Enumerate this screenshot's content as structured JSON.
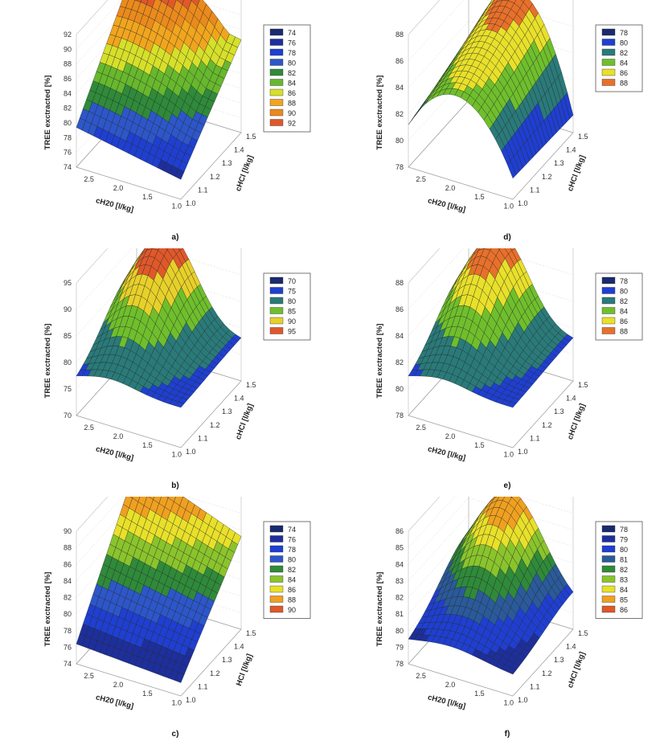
{
  "chart_data": [
    {
      "label": "a)",
      "type": "surface3d",
      "shape": "ridge",
      "zlabel": "TREE exctracted [%]",
      "xlabel": "cH20 [l/kg]",
      "ylabel": "cHCl [l/kg]",
      "zticks": [
        74,
        76,
        78,
        80,
        82,
        84,
        86,
        88,
        90,
        92
      ],
      "zlim": [
        74,
        92
      ],
      "xticks": [
        "2.5",
        "2.0",
        "1.5",
        "1.0"
      ],
      "yticks": [
        "1.0",
        "1.1",
        "1.2",
        "1.3",
        "1.4",
        "1.5"
      ],
      "legend": [
        "74",
        "76",
        "78",
        "80",
        "82",
        "84",
        "86",
        "88",
        "90",
        "92"
      ],
      "legend_colors": [
        "#1a2a6e",
        "#1d2f9c",
        "#1f3fd1",
        "#2d56c9",
        "#2f8a3a",
        "#67b82d",
        "#d6e02a",
        "#f1a51e",
        "#ea8a1c",
        "#e0582a"
      ]
    },
    {
      "label": "d)",
      "type": "surface3d",
      "shape": "dome",
      "zlabel": "TREE exctracted [%]",
      "xlabel": "cH20 [l/kg]",
      "ylabel": "cHCl [l/kg]",
      "zticks": [
        78,
        80,
        82,
        84,
        86,
        88
      ],
      "zlim": [
        78,
        88
      ],
      "xticks": [
        "2.5",
        "2.0",
        "1.5",
        "1.0"
      ],
      "yticks": [
        "1.0",
        "1.1",
        "1.2",
        "1.3",
        "1.4",
        "1.5"
      ],
      "legend": [
        "78",
        "80",
        "82",
        "84",
        "86",
        "88"
      ],
      "legend_colors": [
        "#1a2a6e",
        "#1f3fd1",
        "#2a7a7a",
        "#6fbf2c",
        "#e8e02a",
        "#e8702a"
      ]
    },
    {
      "label": "b)",
      "type": "surface3d",
      "shape": "peak",
      "zlabel": "TREE exctracted [%]",
      "xlabel": "cH20 [l/kg]",
      "ylabel": "cHCl [l/kg]",
      "zticks": [
        70,
        75,
        80,
        85,
        90,
        95
      ],
      "zlim": [
        70,
        95
      ],
      "xticks": [
        "2.5",
        "2.0",
        "1.5",
        "1.0"
      ],
      "yticks": [
        "1.0",
        "1.1",
        "1.2",
        "1.3",
        "1.4",
        "1.5"
      ],
      "legend": [
        "70",
        "75",
        "80",
        "85",
        "90",
        "95"
      ],
      "legend_colors": [
        "#1a2a6e",
        "#1f3fd1",
        "#2a7a7a",
        "#6fbf2c",
        "#e8d02a",
        "#e0582a"
      ]
    },
    {
      "label": "e)",
      "type": "surface3d",
      "shape": "peak",
      "zlabel": "TREE exctracted [%]",
      "xlabel": "cH20 [l/kg]",
      "ylabel": "cHCl [l/kg]",
      "zticks": [
        78,
        80,
        82,
        84,
        86,
        88
      ],
      "zlim": [
        78,
        88
      ],
      "xticks": [
        "2.5",
        "2.0",
        "1.5",
        "1.0"
      ],
      "yticks": [
        "1.0",
        "1.1",
        "1.2",
        "1.3",
        "1.4",
        "1.5"
      ],
      "legend": [
        "78",
        "80",
        "82",
        "84",
        "86",
        "88"
      ],
      "legend_colors": [
        "#1a2a6e",
        "#1f3fd1",
        "#2a7a7a",
        "#6fbf2c",
        "#e8e02a",
        "#e8702a"
      ]
    },
    {
      "label": "c)",
      "type": "surface3d",
      "shape": "slope",
      "zlabel": "TREE exctracted [%]",
      "xlabel": "cH20 [l/kg]",
      "ylabel": "HCl [l/kg]",
      "zticks": [
        74,
        76,
        78,
        80,
        82,
        84,
        86,
        88,
        90
      ],
      "zlim": [
        74,
        90
      ],
      "xticks": [
        "2.5",
        "2.0",
        "1.5",
        "1.0"
      ],
      "yticks": [
        "1.0",
        "1.1",
        "1.2",
        "1.3",
        "1.4",
        "1.5"
      ],
      "legend": [
        "74",
        "76",
        "78",
        "80",
        "82",
        "84",
        "86",
        "88",
        "90"
      ],
      "legend_colors": [
        "#1a2a6e",
        "#1d2f9c",
        "#1f3fd1",
        "#2d56c9",
        "#2f8a3a",
        "#8ac42c",
        "#e8e02a",
        "#f0a020",
        "#e0582a"
      ]
    },
    {
      "label": "f)",
      "type": "surface3d",
      "shape": "peakback",
      "zlabel": "TREE exctracted [%]",
      "xlabel": "cH20 [l/kg]",
      "ylabel": "cHCl [l/kg]",
      "zticks": [
        78,
        79,
        80,
        81,
        82,
        83,
        84,
        85,
        86
      ],
      "zlim": [
        78,
        86
      ],
      "xticks": [
        "2.5",
        "2.0",
        "1.5",
        "1.0"
      ],
      "yticks": [
        "1.0",
        "1.1",
        "1.2",
        "1.3",
        "1.4",
        "1.5"
      ],
      "legend": [
        "78",
        "79",
        "80",
        "81",
        "82",
        "83",
        "84",
        "85",
        "86"
      ],
      "legend_colors": [
        "#1a2a6e",
        "#1d2f9c",
        "#1f3fd1",
        "#2a5a9a",
        "#2f8a3a",
        "#8ac42c",
        "#e8e02a",
        "#f0a020",
        "#e0582a"
      ]
    }
  ]
}
